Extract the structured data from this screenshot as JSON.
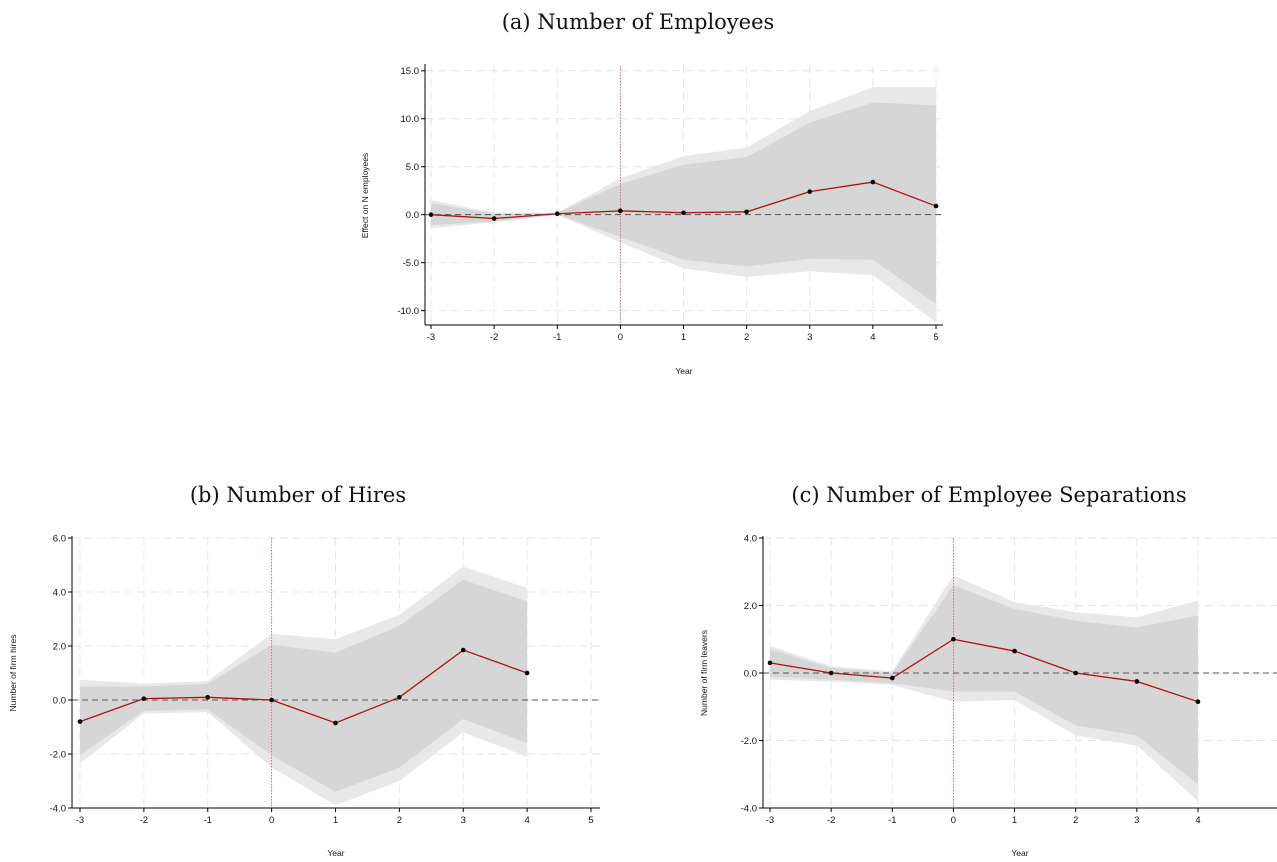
{
  "figure": {
    "captions": [
      "(a)  Number of Employees",
      "(b)  Number of Hires",
      "(c)  Number of Employee Separations"
    ]
  },
  "chart_data": [
    {
      "type": "line",
      "caption": "(a)  Number of Employees",
      "xlabel": "Year",
      "ylabel": "Effect on N employees",
      "x": [
        -3,
        -2,
        -1,
        0,
        1,
        2,
        3,
        4,
        5
      ],
      "xticks": [
        "-3",
        "-2",
        "-1",
        "0",
        "1",
        "2",
        "3",
        "4",
        "5"
      ],
      "yticks": [
        "15.0",
        "10.0",
        "5.0",
        "0.0",
        "-5.0",
        "-10.0"
      ],
      "xlim": [
        -3,
        5
      ],
      "ylim": [
        -11.5,
        15.5
      ],
      "event_line_x": 0,
      "zero_line": true,
      "grid": true,
      "series": [
        {
          "role": "estimate",
          "values": [
            0.0,
            -0.4,
            0.1,
            0.4,
            0.2,
            0.3,
            2.4,
            3.4,
            0.9
          ]
        },
        {
          "role": "ci_outer_upper",
          "values": [
            1.5,
            0.2,
            0.2,
            3.8,
            6.1,
            7.0,
            10.8,
            13.3,
            13.3
          ]
        },
        {
          "role": "ci_outer_lower",
          "values": [
            -1.4,
            -0.8,
            0.0,
            -2.9,
            -5.6,
            -6.5,
            -5.9,
            -6.3,
            -11.2
          ]
        },
        {
          "role": "ci_inner_upper",
          "values": [
            1.2,
            0.1,
            0.2,
            3.2,
            5.2,
            6.0,
            9.6,
            11.7,
            11.4
          ]
        },
        {
          "role": "ci_inner_lower",
          "values": [
            -1.1,
            -0.7,
            0.0,
            -2.3,
            -4.7,
            -5.4,
            -4.6,
            -4.7,
            -9.3
          ]
        }
      ]
    },
    {
      "type": "line",
      "caption": "(b)  Number of Hires",
      "xlabel": "Year",
      "ylabel": "Number of firm hires",
      "x": [
        -3,
        -2,
        -1,
        0,
        1,
        2,
        3,
        4
      ],
      "xticks": [
        "-3",
        "-2",
        "-1",
        "0",
        "1",
        "2",
        "3",
        "4",
        "5"
      ],
      "yticks": [
        "6.0",
        "4.0",
        "2.0",
        "0.0",
        "-2.0",
        "-4.0"
      ],
      "xlim": [
        -3,
        5
      ],
      "ylim": [
        -4.0,
        6.0
      ],
      "event_line_x": 0,
      "zero_line": true,
      "grid": true,
      "series": [
        {
          "role": "estimate",
          "values": [
            -0.8,
            0.05,
            0.1,
            0.0,
            -0.85,
            0.1,
            1.85,
            1.0
          ]
        },
        {
          "role": "ci_outer_upper",
          "values": [
            0.75,
            0.6,
            0.7,
            2.45,
            2.25,
            3.15,
            4.95,
            4.15
          ]
        },
        {
          "role": "ci_outer_lower",
          "values": [
            -2.35,
            -0.5,
            -0.45,
            -2.5,
            -3.9,
            -3.0,
            -1.2,
            -2.1
          ]
        },
        {
          "role": "ci_inner_upper",
          "values": [
            0.5,
            0.5,
            0.6,
            2.05,
            1.75,
            2.75,
            4.45,
            3.65
          ]
        },
        {
          "role": "ci_inner_lower",
          "values": [
            -2.05,
            -0.4,
            -0.35,
            -2.05,
            -3.4,
            -2.5,
            -0.7,
            -1.6
          ]
        }
      ]
    },
    {
      "type": "line",
      "caption": "(c)  Number of Employee Separations",
      "xlabel": "Year",
      "ylabel": "Number of firm leavers",
      "x": [
        -3,
        -2,
        -1,
        0,
        1,
        2,
        3,
        4
      ],
      "xticks": [
        "-3",
        "-2",
        "-1",
        "0",
        "1",
        "2",
        "3",
        "4"
      ],
      "yticks": [
        "4.0",
        "2.0",
        "0.0",
        "-2.0",
        "-4.0"
      ],
      "xlim": [
        -3,
        4.9
      ],
      "ylim": [
        -4.0,
        4.0
      ],
      "event_line_x": 0,
      "zero_line": true,
      "grid": true,
      "series": [
        {
          "role": "estimate",
          "values": [
            0.3,
            0.0,
            -0.15,
            1.0,
            0.65,
            0.0,
            -0.25,
            -0.85
          ]
        },
        {
          "role": "ci_outer_upper",
          "values": [
            0.8,
            0.2,
            0.05,
            2.9,
            2.1,
            1.8,
            1.65,
            2.15
          ]
        },
        {
          "role": "ci_outer_lower",
          "values": [
            -0.2,
            -0.25,
            -0.35,
            -0.85,
            -0.8,
            -1.85,
            -2.15,
            -3.8
          ]
        },
        {
          "role": "ci_inner_upper",
          "values": [
            0.7,
            0.15,
            0.0,
            2.6,
            1.9,
            1.55,
            1.35,
            1.7
          ]
        },
        {
          "role": "ci_inner_lower",
          "values": [
            -0.1,
            -0.2,
            -0.3,
            -0.55,
            -0.55,
            -1.55,
            -1.85,
            -3.3
          ]
        }
      ]
    }
  ]
}
